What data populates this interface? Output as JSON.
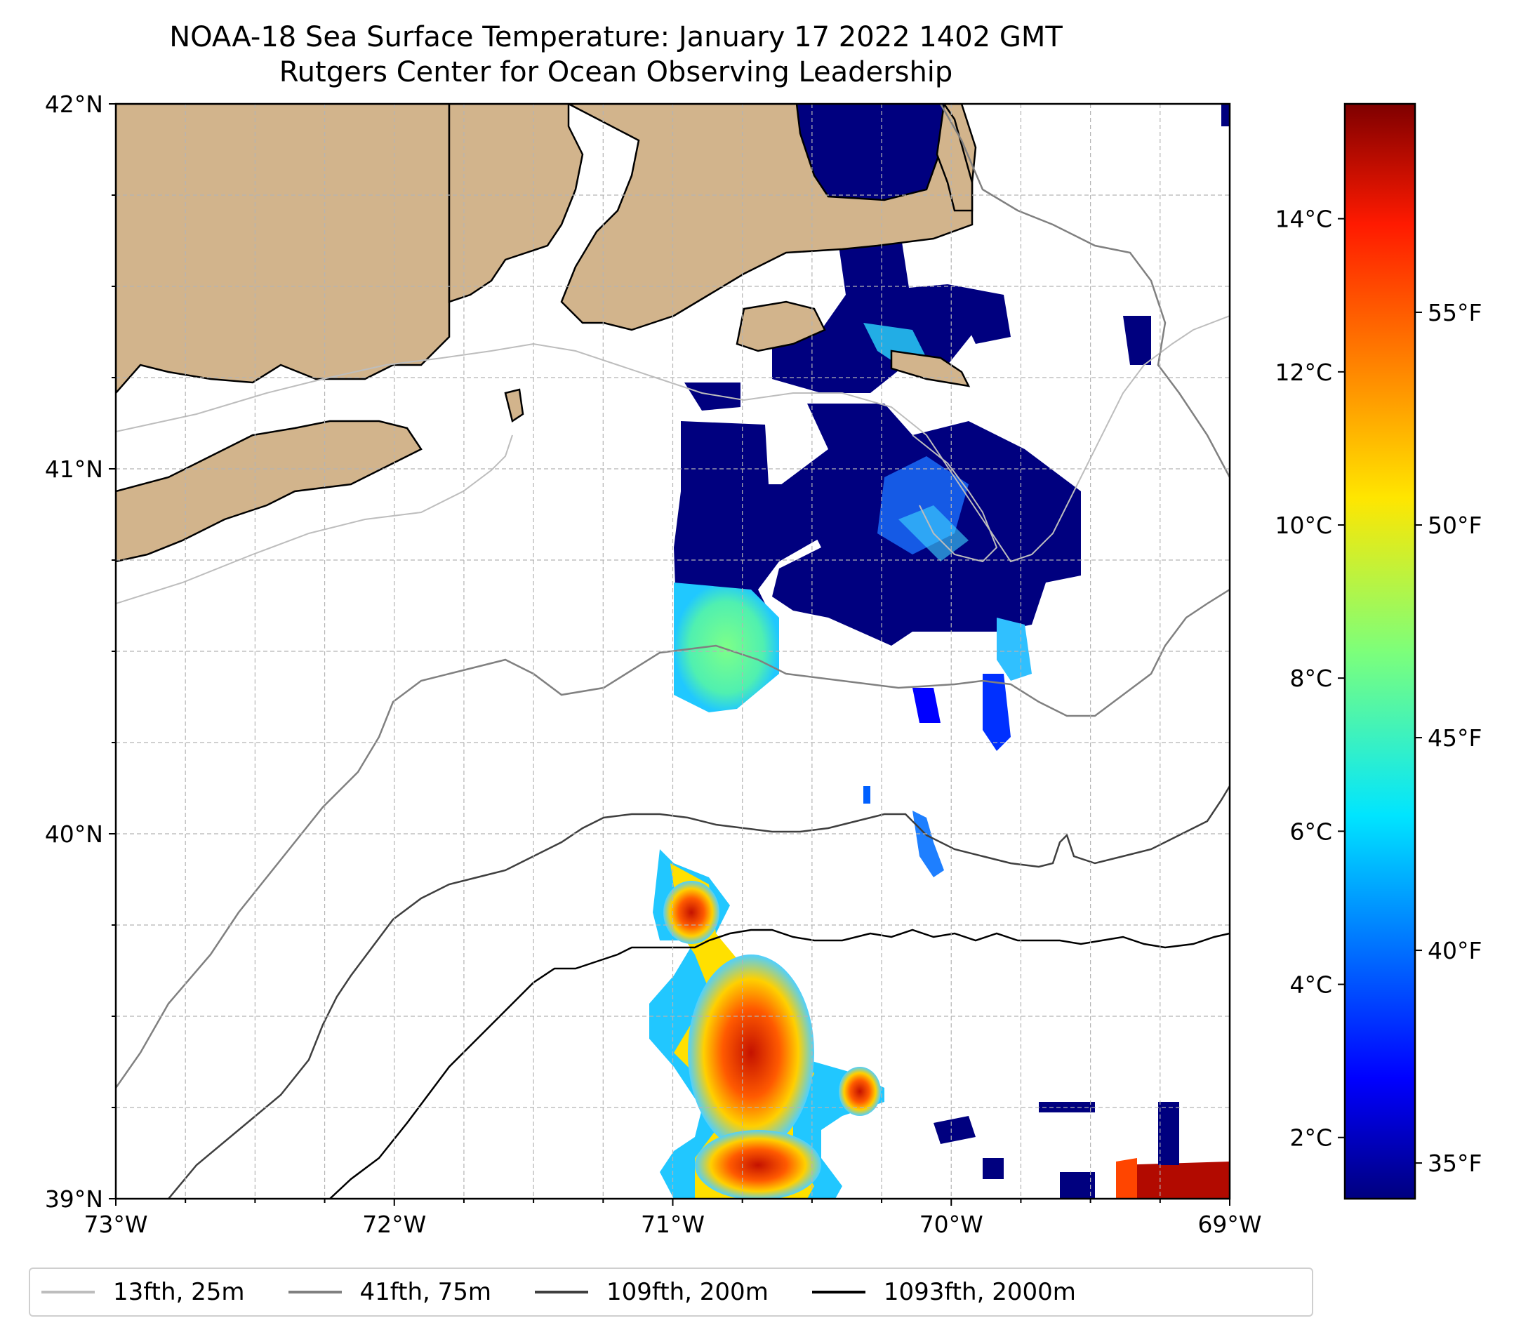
{
  "title": {
    "line1": "NOAA-18 Sea Surface Temperature: January 17 2022 1402 GMT",
    "line2": "Rutgers Center for Ocean Observing Leadership"
  },
  "map": {
    "lon_range": [
      -73,
      -69
    ],
    "lat_range": [
      39,
      42
    ],
    "x_ticks": [
      "73°W",
      "72°W",
      "71°W",
      "70°W",
      "69°W"
    ],
    "y_ticks": [
      "42°N",
      "41°N",
      "40°N",
      "39°N"
    ],
    "land_color": "#d2b48c",
    "gridlines": "dashed"
  },
  "colorbar": {
    "colormap": "jet",
    "celsius_labels": [
      "14°C",
      "12°C",
      "10°C",
      "8°C",
      "6°C",
      "4°C",
      "2°C"
    ],
    "fahrenheit_labels": [
      "55°F",
      "50°F",
      "45°F",
      "40°F",
      "35°F"
    ],
    "range_celsius": [
      1.2,
      15.5
    ]
  },
  "legend": {
    "entries": [
      {
        "label": "13fth, 25m",
        "color": "#bdbdbd"
      },
      {
        "label": "41fth, 75m",
        "color": "#808080"
      },
      {
        "label": "109fth, 200m",
        "color": "#3f3f3f"
      },
      {
        "label": "1093fth, 2000m",
        "color": "#000000"
      }
    ]
  }
}
